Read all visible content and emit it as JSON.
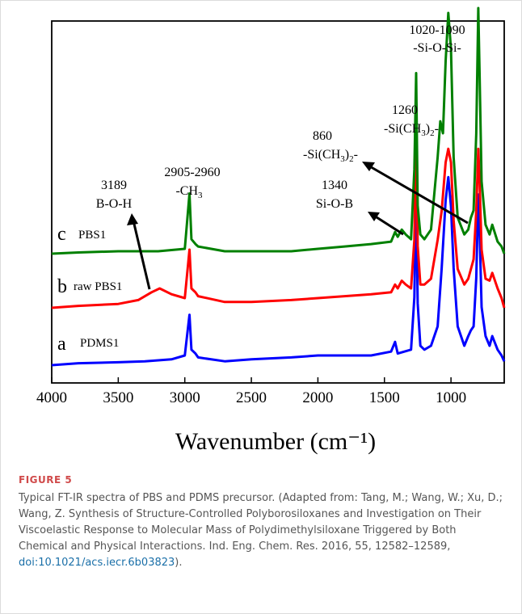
{
  "figure": {
    "label": "FIGURE 5",
    "caption_text": "Typical FT-IR spectra of PBS and PDMS precursor. (Adapted from: Tang, M.; Wang, W.; Xu, D.; Wang, Z. Synthesis of Structure-Controlled Polyborosiloxanes and Investigation on Their Viscoelastic Response to Molecular Mass of Polydimethylsiloxane Triggered by Both Chemical and Physical Interactions. Ind. Eng. Chem. Res. 2016, 55, 12582–12589, ",
    "caption_doi": "doi:10.1021/acs.iecr.6b03823",
    "caption_end": ")."
  },
  "chart_data": {
    "type": "line",
    "title": "",
    "xlabel": "Wavenumber (cm⁻¹)",
    "ylabel": "",
    "xlim": [
      4000,
      600
    ],
    "x_reversed": true,
    "xticks": [
      4000,
      3500,
      3000,
      2500,
      2000,
      1500,
      1000
    ],
    "grid": false,
    "series": [
      {
        "name": "PDMS1",
        "letter": "a",
        "color": "#0000ff",
        "points": [
          [
            4000,
            0.0
          ],
          [
            3800,
            0.01
          ],
          [
            3500,
            0.015
          ],
          [
            3300,
            0.02
          ],
          [
            3100,
            0.03
          ],
          [
            3000,
            0.05
          ],
          [
            2965,
            0.26
          ],
          [
            2950,
            0.08
          ],
          [
            2920,
            0.06
          ],
          [
            2900,
            0.04
          ],
          [
            2700,
            0.02
          ],
          [
            2500,
            0.03
          ],
          [
            2200,
            0.04
          ],
          [
            2000,
            0.05
          ],
          [
            1800,
            0.05
          ],
          [
            1600,
            0.05
          ],
          [
            1450,
            0.07
          ],
          [
            1420,
            0.12
          ],
          [
            1400,
            0.06
          ],
          [
            1300,
            0.08
          ],
          [
            1275,
            0.35
          ],
          [
            1262,
            0.92
          ],
          [
            1250,
            0.32
          ],
          [
            1230,
            0.1
          ],
          [
            1200,
            0.08
          ],
          [
            1150,
            0.1
          ],
          [
            1100,
            0.2
          ],
          [
            1070,
            0.5
          ],
          [
            1040,
            0.85
          ],
          [
            1020,
            0.97
          ],
          [
            1000,
            0.82
          ],
          [
            980,
            0.5
          ],
          [
            950,
            0.2
          ],
          [
            900,
            0.1
          ],
          [
            870,
            0.15
          ],
          [
            850,
            0.18
          ],
          [
            830,
            0.2
          ],
          [
            810,
            0.45
          ],
          [
            795,
            0.88
          ],
          [
            785,
            0.7
          ],
          [
            770,
            0.3
          ],
          [
            740,
            0.15
          ],
          [
            710,
            0.1
          ],
          [
            690,
            0.15
          ],
          [
            650,
            0.08
          ],
          [
            620,
            0.05
          ],
          [
            600,
            0.02
          ]
        ]
      },
      {
        "name": "raw PBS1",
        "letter": "b",
        "color": "#ff0000",
        "points": [
          [
            4000,
            0.0
          ],
          [
            3800,
            0.01
          ],
          [
            3500,
            0.02
          ],
          [
            3350,
            0.04
          ],
          [
            3250,
            0.08
          ],
          [
            3189,
            0.1
          ],
          [
            3100,
            0.07
          ],
          [
            3000,
            0.05
          ],
          [
            2965,
            0.3
          ],
          [
            2950,
            0.1
          ],
          [
            2920,
            0.08
          ],
          [
            2900,
            0.06
          ],
          [
            2700,
            0.03
          ],
          [
            2500,
            0.03
          ],
          [
            2200,
            0.04
          ],
          [
            2000,
            0.05
          ],
          [
            1800,
            0.06
          ],
          [
            1600,
            0.07
          ],
          [
            1450,
            0.08
          ],
          [
            1420,
            0.12
          ],
          [
            1400,
            0.1
          ],
          [
            1370,
            0.14
          ],
          [
            1340,
            0.12
          ],
          [
            1300,
            0.1
          ],
          [
            1275,
            0.35
          ],
          [
            1262,
            0.95
          ],
          [
            1250,
            0.32
          ],
          [
            1230,
            0.12
          ],
          [
            1200,
            0.12
          ],
          [
            1150,
            0.15
          ],
          [
            1100,
            0.35
          ],
          [
            1070,
            0.5
          ],
          [
            1040,
            0.75
          ],
          [
            1020,
            0.82
          ],
          [
            1000,
            0.75
          ],
          [
            980,
            0.45
          ],
          [
            950,
            0.2
          ],
          [
            900,
            0.12
          ],
          [
            870,
            0.15
          ],
          [
            850,
            0.2
          ],
          [
            830,
            0.25
          ],
          [
            810,
            0.5
          ],
          [
            795,
            0.82
          ],
          [
            785,
            0.65
          ],
          [
            770,
            0.3
          ],
          [
            740,
            0.15
          ],
          [
            710,
            0.14
          ],
          [
            690,
            0.18
          ],
          [
            650,
            0.1
          ],
          [
            620,
            0.05
          ],
          [
            600,
            0.0
          ]
        ]
      },
      {
        "name": "PBS1",
        "letter": "c",
        "color": "#008000",
        "points": [
          [
            4000,
            0.0
          ],
          [
            3800,
            0.005
          ],
          [
            3500,
            0.01
          ],
          [
            3200,
            0.01
          ],
          [
            3000,
            0.02
          ],
          [
            2965,
            0.25
          ],
          [
            2950,
            0.06
          ],
          [
            2920,
            0.04
          ],
          [
            2900,
            0.03
          ],
          [
            2700,
            0.01
          ],
          [
            2500,
            0.01
          ],
          [
            2200,
            0.01
          ],
          [
            2000,
            0.02
          ],
          [
            1800,
            0.03
          ],
          [
            1600,
            0.04
          ],
          [
            1450,
            0.05
          ],
          [
            1420,
            0.09
          ],
          [
            1400,
            0.07
          ],
          [
            1370,
            0.1
          ],
          [
            1340,
            0.08
          ],
          [
            1300,
            0.06
          ],
          [
            1275,
            0.35
          ],
          [
            1262,
            0.75
          ],
          [
            1250,
            0.2
          ],
          [
            1230,
            0.08
          ],
          [
            1200,
            0.06
          ],
          [
            1150,
            0.1
          ],
          [
            1100,
            0.4
          ],
          [
            1080,
            0.55
          ],
          [
            1060,
            0.5
          ],
          [
            1040,
            0.8
          ],
          [
            1020,
            1.0
          ],
          [
            1000,
            0.85
          ],
          [
            980,
            0.4
          ],
          [
            950,
            0.15
          ],
          [
            900,
            0.08
          ],
          [
            870,
            0.1
          ],
          [
            850,
            0.15
          ],
          [
            830,
            0.18
          ],
          [
            810,
            0.5
          ],
          [
            795,
            1.02
          ],
          [
            785,
            0.75
          ],
          [
            770,
            0.3
          ],
          [
            740,
            0.12
          ],
          [
            710,
            0.08
          ],
          [
            690,
            0.12
          ],
          [
            650,
            0.05
          ],
          [
            620,
            0.03
          ],
          [
            600,
            0.0
          ]
        ]
      }
    ],
    "annotations": [
      {
        "line1": "3189",
        "line2": "B-O-H"
      },
      {
        "line1": "2905-2960",
        "line2": "-CH",
        "sub": "3"
      },
      {
        "line1": "860",
        "line2": "-Si(CH",
        "sub": "3",
        "tail": ")",
        "sub2": "2",
        "tail2": "-"
      },
      {
        "line1": "1340",
        "line2": "Si-O-B"
      },
      {
        "line1": "1260",
        "line2": "-Si(CH",
        "sub": "3",
        "tail": ")",
        "sub2": "2",
        "tail2": "-"
      },
      {
        "line1": "1020-1090",
        "line2": "-Si-O-Si-"
      }
    ],
    "trace_labels": [
      {
        "letter": "c",
        "text": "PBS1"
      },
      {
        "letter": "b",
        "text": "raw PBS1"
      },
      {
        "letter": "a",
        "text": "PDMS1"
      }
    ]
  }
}
